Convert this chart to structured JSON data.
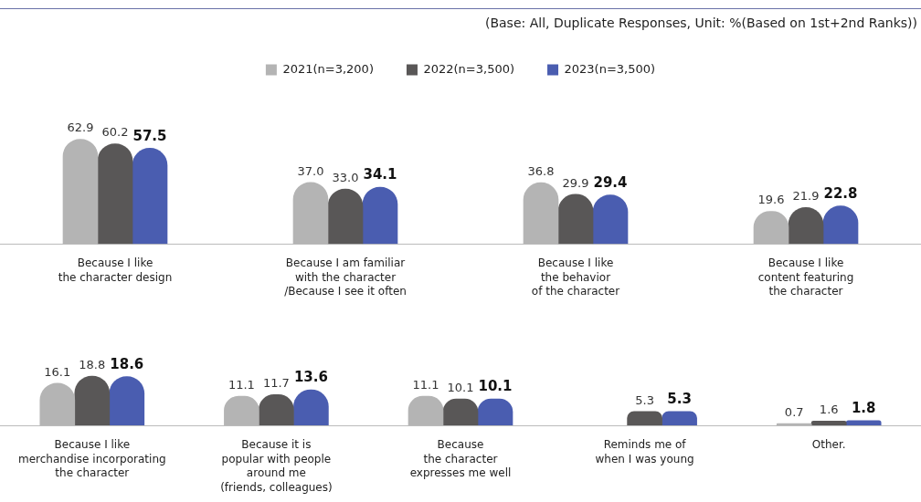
{
  "chart_data": [
    {
      "type": "bar",
      "legend": "top",
      "annotations": [
        "(Base: All, Duplicate Responses, Unit: %(Based on 1st+2nd Ranks))"
      ],
      "categories": [
        "Because I like\nthe character design",
        "Because I am familiar\nwith the character\n/Because I see it often",
        "Because I like\nthe behavior\nof the character",
        "Because I like\ncontent featuring\nthe character"
      ],
      "series": [
        {
          "name": "2021(n=3,200)",
          "color": "#b4b4b4",
          "values": [
            62.9,
            37.0,
            36.8,
            19.6
          ],
          "value_labels": [
            "62.9",
            "37.0",
            "36.8",
            "19.6"
          ]
        },
        {
          "name": "2022(n=3,500)",
          "color": "#595757",
          "values": [
            60.2,
            33.0,
            29.9,
            21.9
          ],
          "value_labels": [
            "60.2",
            "33.0",
            "29.9",
            "21.9"
          ]
        },
        {
          "name": "2023(n=3,500)",
          "color": "#4a5db0",
          "values": [
            57.5,
            34.1,
            29.4,
            22.8
          ],
          "value_labels": [
            "57.5",
            "34.1",
            "29.4",
            "22.8"
          ]
        }
      ]
    },
    {
      "type": "bar",
      "categories": [
        "Because I like\nmerchandise incorporating\nthe character",
        "Because it is\npopular with people\naround me\n(friends, colleagues)",
        "Because\nthe character\nexpresses me well",
        "Reminds me of\nwhen I was young",
        "Other."
      ],
      "series": [
        {
          "color": "#b4b4b4",
          "values": [
            16.1,
            11.1,
            11.1,
            null,
            0.7
          ],
          "value_labels": [
            "16.1",
            "11.1",
            "11.1",
            null,
            "0.7"
          ]
        },
        {
          "color": "#595757",
          "values": [
            18.8,
            11.7,
            10.1,
            5.3,
            1.6
          ],
          "value_labels": [
            "18.8",
            "11.7",
            "10.1",
            "5.3",
            "1.6"
          ]
        },
        {
          "color": "#4a5db0",
          "values": [
            18.6,
            13.6,
            10.1,
            5.3,
            1.8
          ],
          "value_labels": [
            "18.6",
            "13.6",
            "10.1",
            "5.3",
            "1.8"
          ]
        }
      ]
    }
  ]
}
